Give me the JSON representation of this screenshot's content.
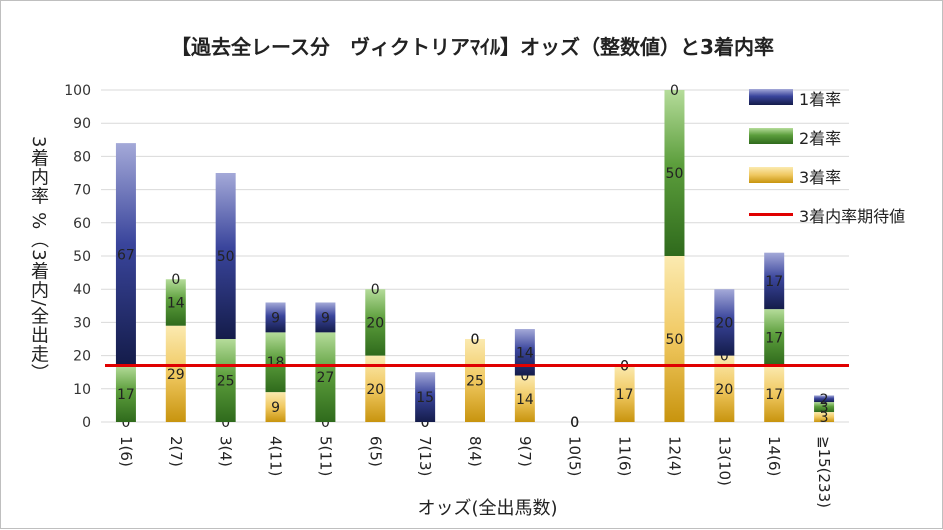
{
  "chart_data": {
    "type": "bar",
    "stacked": true,
    "title": "【過去全レース分　ヴィクトリアﾏｲﾙ】オッズ（整数値）と3着内率",
    "xlabel": "オッズ(全出馬数)",
    "ylabel": "3着内率 %（3着内/全出走）",
    "ylim": [
      0,
      100
    ],
    "yticks": [
      0,
      10,
      20,
      30,
      40,
      50,
      60,
      70,
      80,
      90,
      100
    ],
    "grid": true,
    "legend_position": "right",
    "categories": [
      "1(6)",
      "2(7)",
      "3(4)",
      "4(11)",
      "5(11)",
      "6(5)",
      "7(13)",
      "8(4)",
      "9(7)",
      "10(5)",
      "11(6)",
      "12(4)",
      "13(10)",
      "14(6)",
      "≧15(233)"
    ],
    "series": [
      {
        "name": "3着率",
        "color": "#d9a520",
        "values": [
          0,
          29,
          0,
          9,
          0,
          20,
          0,
          25,
          14,
          0,
          17,
          50,
          20,
          17,
          3
        ],
        "labels": [
          "0",
          "29",
          "0",
          "9",
          "0",
          "20",
          "0",
          "25",
          "14",
          "0",
          "17",
          "50",
          "20",
          "17",
          "3"
        ]
      },
      {
        "name": "2着率",
        "color": "#5c9e3c",
        "values": [
          17,
          14,
          25,
          18,
          27,
          20,
          0,
          0,
          0,
          0,
          0,
          50,
          0,
          17,
          3
        ],
        "labels": [
          "17",
          "14",
          "25",
          "18",
          "27",
          "20",
          "0",
          "0",
          "0",
          "0",
          "0",
          "50",
          "0",
          "17",
          "3"
        ]
      },
      {
        "name": "1着率",
        "color": "#2e3a8c",
        "values": [
          67,
          0,
          50,
          9,
          9,
          0,
          15,
          0,
          14,
          0,
          0,
          0,
          20,
          17,
          2
        ],
        "labels": [
          "67",
          "0",
          "50",
          "9",
          "9",
          "0",
          "15",
          "0",
          "14",
          "0",
          "0",
          "0",
          "20",
          "17",
          "2"
        ]
      }
    ],
    "reference_line": {
      "name": "3着内率期待値",
      "value": 17,
      "color": "#e00000"
    }
  }
}
